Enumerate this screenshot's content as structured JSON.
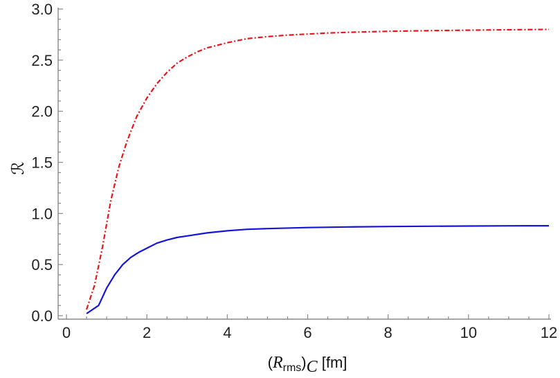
{
  "chart_data": {
    "type": "line",
    "xlim": [
      0,
      12
    ],
    "ylim": [
      0,
      3
    ],
    "x_ticks": [
      0,
      2,
      4,
      6,
      8,
      10,
      12
    ],
    "y_ticks": [
      0.0,
      0.5,
      1.0,
      1.5,
      2.0,
      2.5,
      3.0
    ],
    "x_tick_labels": [
      "0",
      "2",
      "4",
      "6",
      "8",
      "10",
      "12"
    ],
    "y_tick_labels": [
      "0.0",
      "0.5",
      "1.0",
      "1.5",
      "2.0",
      "2.5",
      "3.0"
    ],
    "xlabel": {
      "open_paren": "(",
      "symbol": "R",
      "subscript": "rms",
      "close_paren": ")",
      "outer_subscript": "C",
      "unit": " [fm]"
    },
    "ylabel": "ℛ",
    "grid": false,
    "series": [
      {
        "color": "#e8141b",
        "style": "dash-dot",
        "x": [
          0.5,
          0.7,
          0.9,
          1.1,
          1.3,
          1.5,
          1.75,
          2.0,
          2.25,
          2.5,
          2.75,
          3.0,
          3.25,
          3.5,
          4.0,
          4.5,
          5.0,
          5.5,
          6.0,
          6.5,
          7.0,
          8.0,
          9.0,
          10.0,
          11.0,
          12.0
        ],
        "y": [
          0.06,
          0.3,
          0.68,
          1.12,
          1.45,
          1.7,
          1.95,
          2.13,
          2.27,
          2.38,
          2.47,
          2.53,
          2.58,
          2.62,
          2.67,
          2.71,
          2.73,
          2.745,
          2.755,
          2.765,
          2.772,
          2.782,
          2.788,
          2.793,
          2.797,
          2.8
        ]
      },
      {
        "color": "#1515d6",
        "style": "solid",
        "x": [
          0.5,
          0.8,
          1.0,
          1.2,
          1.4,
          1.6,
          1.8,
          2.0,
          2.25,
          2.5,
          2.75,
          3.0,
          3.5,
          4.0,
          4.5,
          5.0,
          6.0,
          7.0,
          8.0,
          9.0,
          10.0,
          11.0,
          12.0
        ],
        "y": [
          0.02,
          0.1,
          0.27,
          0.4,
          0.5,
          0.57,
          0.62,
          0.66,
          0.71,
          0.74,
          0.765,
          0.78,
          0.81,
          0.83,
          0.845,
          0.852,
          0.862,
          0.868,
          0.872,
          0.875,
          0.877,
          0.879,
          0.88
        ]
      }
    ]
  }
}
